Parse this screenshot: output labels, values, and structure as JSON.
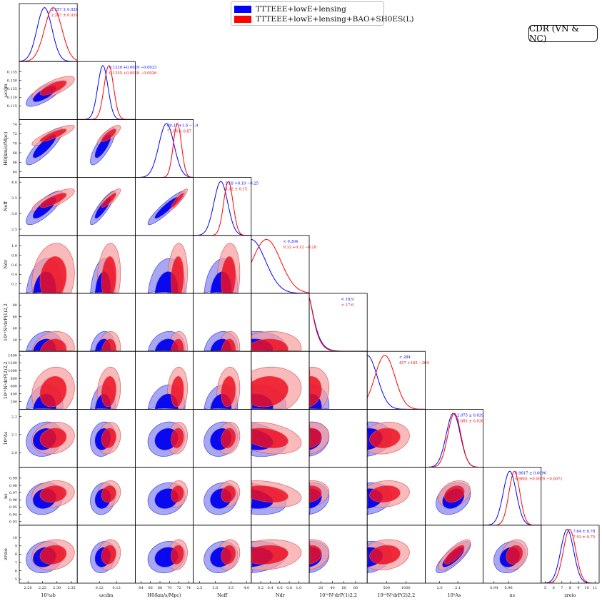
{
  "figure": {
    "badge": "CDR (VN & NC)"
  },
  "colors": {
    "series1": "#0000ff",
    "series2": "#ff0000",
    "series1_outer": "#8a8af0",
    "series1_inner": "#0000ee",
    "series2_outer": "#f5a0a0",
    "series2_inner": "#ee1122"
  },
  "chart_data": {
    "type": "triangle",
    "legend_position": "top-center",
    "series": [
      {
        "name": "TTTEEE+lowE+lensing",
        "color": "#0000ff"
      },
      {
        "name": "TTTEEE+lowE+lensing+BAO+SH0ES(L)",
        "color": "#ff0000"
      }
    ],
    "parameters": [
      {
        "label": "10²ω_b",
        "axis_label": "10²ωb",
        "range": [
          2.17,
          2.37
        ],
        "ticks": [
          2.2,
          2.25,
          2.3,
          2.35
        ],
        "tick_labels": [
          "2.20",
          "2.25",
          "2.30",
          "2.35"
        ],
        "means": [
          2.257,
          2.287
        ],
        "sigmas": [
          0.026,
          0.03
        ],
        "annotations": [
          "2.257 ± 0.026",
          "2.287 ± 0.030"
        ]
      },
      {
        "label": "ω_cdm",
        "axis_label": "ωcdm",
        "range": [
          0.107,
          0.141
        ],
        "ticks": [
          0.115,
          0.12,
          0.125,
          0.13,
          0.135
        ],
        "tick_labels": [
          "0.115",
          "0.120",
          "0.125",
          "0.130",
          "0.135"
        ],
        "bottom_ticks": [
          0.12,
          0.13
        ],
        "bottom_tick_labels": [
          "0.12",
          "0.13"
        ],
        "means": [
          0.122,
          0.1255
        ],
        "sigmas": [
          0.003,
          0.0028
        ],
        "annotations": [
          "0.1220 +0.0029 −0.0033",
          "0.1255 +0.0028 −0.0026"
        ]
      },
      {
        "label": "H_0",
        "axis_label": "H0(km/s/Mpc)",
        "range": [
          62.8,
          75.0
        ],
        "ticks": [
          64,
          66,
          68,
          70,
          72,
          74
        ],
        "tick_labels": [
          "64",
          "66",
          "68",
          "70",
          "72",
          "74"
        ],
        "bottom_ticks": [
          64,
          66,
          68,
          70,
          72,
          74
        ],
        "bottom_tick_labels": [
          "64",
          "66",
          "68",
          "70",
          "72",
          "74"
        ],
        "means": [
          69.37,
          71.66
        ],
        "sigmas": [
          1.6,
          0.87
        ],
        "annotations": [
          "69.37 +1.6 −1.9",
          "71.66 ± 0.87"
        ]
      },
      {
        "label": "N_eff",
        "axis_label": "Neff",
        "range": [
          2.3,
          4.15
        ],
        "ticks": [
          2.5,
          3.0,
          3.5,
          4.0
        ],
        "tick_labels": [
          "2.5",
          "3.0",
          "3.5",
          "4.0"
        ],
        "bottom_ticks": [
          2.5,
          3.0,
          3.5,
          4.0
        ],
        "bottom_tick_labels": [
          "2.5",
          "3.0",
          "3.5",
          "4.0"
        ],
        "means": [
          3.18,
          3.42
        ],
        "sigmas": [
          0.22,
          0.15
        ],
        "annotations": [
          "3.18 +0.19 −0.25",
          "3.42 ± 0.15"
        ]
      },
      {
        "label": "N_dr",
        "axis_label": "Ndr",
        "range": [
          0.0,
          1.22
        ],
        "ticks": [
          0.2,
          0.4,
          0.6,
          0.8,
          1.0,
          1.2
        ],
        "tick_labels": [
          "0.2",
          "0.4",
          "0.6",
          "0.8",
          "1.0",
          "1.2"
        ],
        "bottom_ticks": [
          0.2,
          0.4,
          0.6,
          0.8,
          1.0,
          1.2
        ],
        "bottom_tick_labels": [
          "0.2",
          "0.4",
          "0.6",
          "0.8",
          "1.0",
          "1.2"
        ],
        "means": [
          0.0,
          0.32
        ],
        "sigmas": [
          0.3,
          0.3
        ],
        "annotations": [
          "< 0.304",
          "0.32 +0.12 −0.28"
        ]
      },
      {
        "label": "10¹⁰ N_dr² P_2,2^(1)",
        "axis_label": "10¹⁰N²drP(1)2,2",
        "range": [
          0,
          100
        ],
        "ticks": [
          20,
          40,
          60,
          80
        ],
        "tick_labels": [
          "20",
          "40",
          "60",
          "80"
        ],
        "bottom_ticks": [
          20,
          40,
          60,
          80
        ],
        "bottom_tick_labels": [
          "20",
          "40",
          "60",
          "80"
        ],
        "means": [
          0,
          0
        ],
        "sigmas": [
          14,
          14
        ],
        "annotations": [
          "< 18.9",
          "< 17.6"
        ]
      },
      {
        "label": "10¹⁰ N_dr² P_2,2^(2)",
        "axis_label": "10¹⁰N²drP(2)2,2",
        "range": [
          0,
          1500
        ],
        "ticks": [
          200,
          400,
          600,
          800,
          1000,
          1200,
          1400
        ],
        "tick_labels": [
          "200",
          "400",
          "600",
          "800",
          "1000",
          "1200",
          "1400"
        ],
        "bottom_ticks": [
          500,
          1000
        ],
        "bottom_tick_labels": [
          "500",
          "1000"
        ],
        "means": [
          0,
          457
        ],
        "sigmas": [
          260,
          260
        ],
        "annotations": [
          "< 284",
          "457 +165 −364"
        ]
      },
      {
        "label": "10⁹ A_s",
        "axis_label": "10⁹As",
        "range": [
          1.92,
          2.24
        ],
        "ticks": [
          2.0,
          2.1,
          2.2
        ],
        "tick_labels": [
          "2.0",
          "2.1",
          "2.2"
        ],
        "bottom_ticks": [
          2.0,
          2.1
        ],
        "bottom_tick_labels": [
          "2.0",
          "2.1"
        ],
        "means": [
          2.075,
          2.081
        ],
        "sigmas": [
          0.039,
          0.036
        ],
        "annotations": [
          "2.075 ± 0.039",
          "2.081 ± 0.036"
        ]
      },
      {
        "label": "n_s",
        "axis_label": "ns",
        "range": [
          0.925,
          1.005
        ],
        "ticks": [
          0.93,
          0.94,
          0.95,
          0.96,
          0.97,
          0.98,
          0.99
        ],
        "tick_labels": [
          "0.93",
          "0.94",
          "0.95",
          "0.96",
          "0.97",
          "0.98",
          "0.99"
        ],
        "bottom_ticks": [
          0.94,
          0.96
        ],
        "bottom_tick_labels": [
          "0.94",
          "0.96"
        ],
        "means": [
          0.9617,
          0.9681
        ],
        "sigmas": [
          0.009,
          0.0075
        ],
        "annotations": [
          "0.9617 ± 0.0090",
          "0.9681 +0.0076 −0.0071"
        ]
      },
      {
        "label": "z_reio",
        "axis_label": "zreio",
        "range": [
          4.5,
          11.5
        ],
        "ticks": [
          5,
          6,
          7,
          8,
          9,
          10
        ],
        "tick_labels": [
          "5",
          "6",
          "7",
          "8",
          "9",
          "10"
        ],
        "bottom_ticks": [
          5,
          6,
          7,
          8,
          9,
          10,
          11
        ],
        "bottom_tick_labels": [
          "5",
          "6",
          "7",
          "8",
          "9",
          "10",
          "11"
        ],
        "means": [
          7.64,
          7.93
        ],
        "sigmas": [
          0.78,
          0.75
        ],
        "annotations": [
          "7.64 ± 0.78",
          "7.93 ± 0.75"
        ]
      }
    ]
  }
}
